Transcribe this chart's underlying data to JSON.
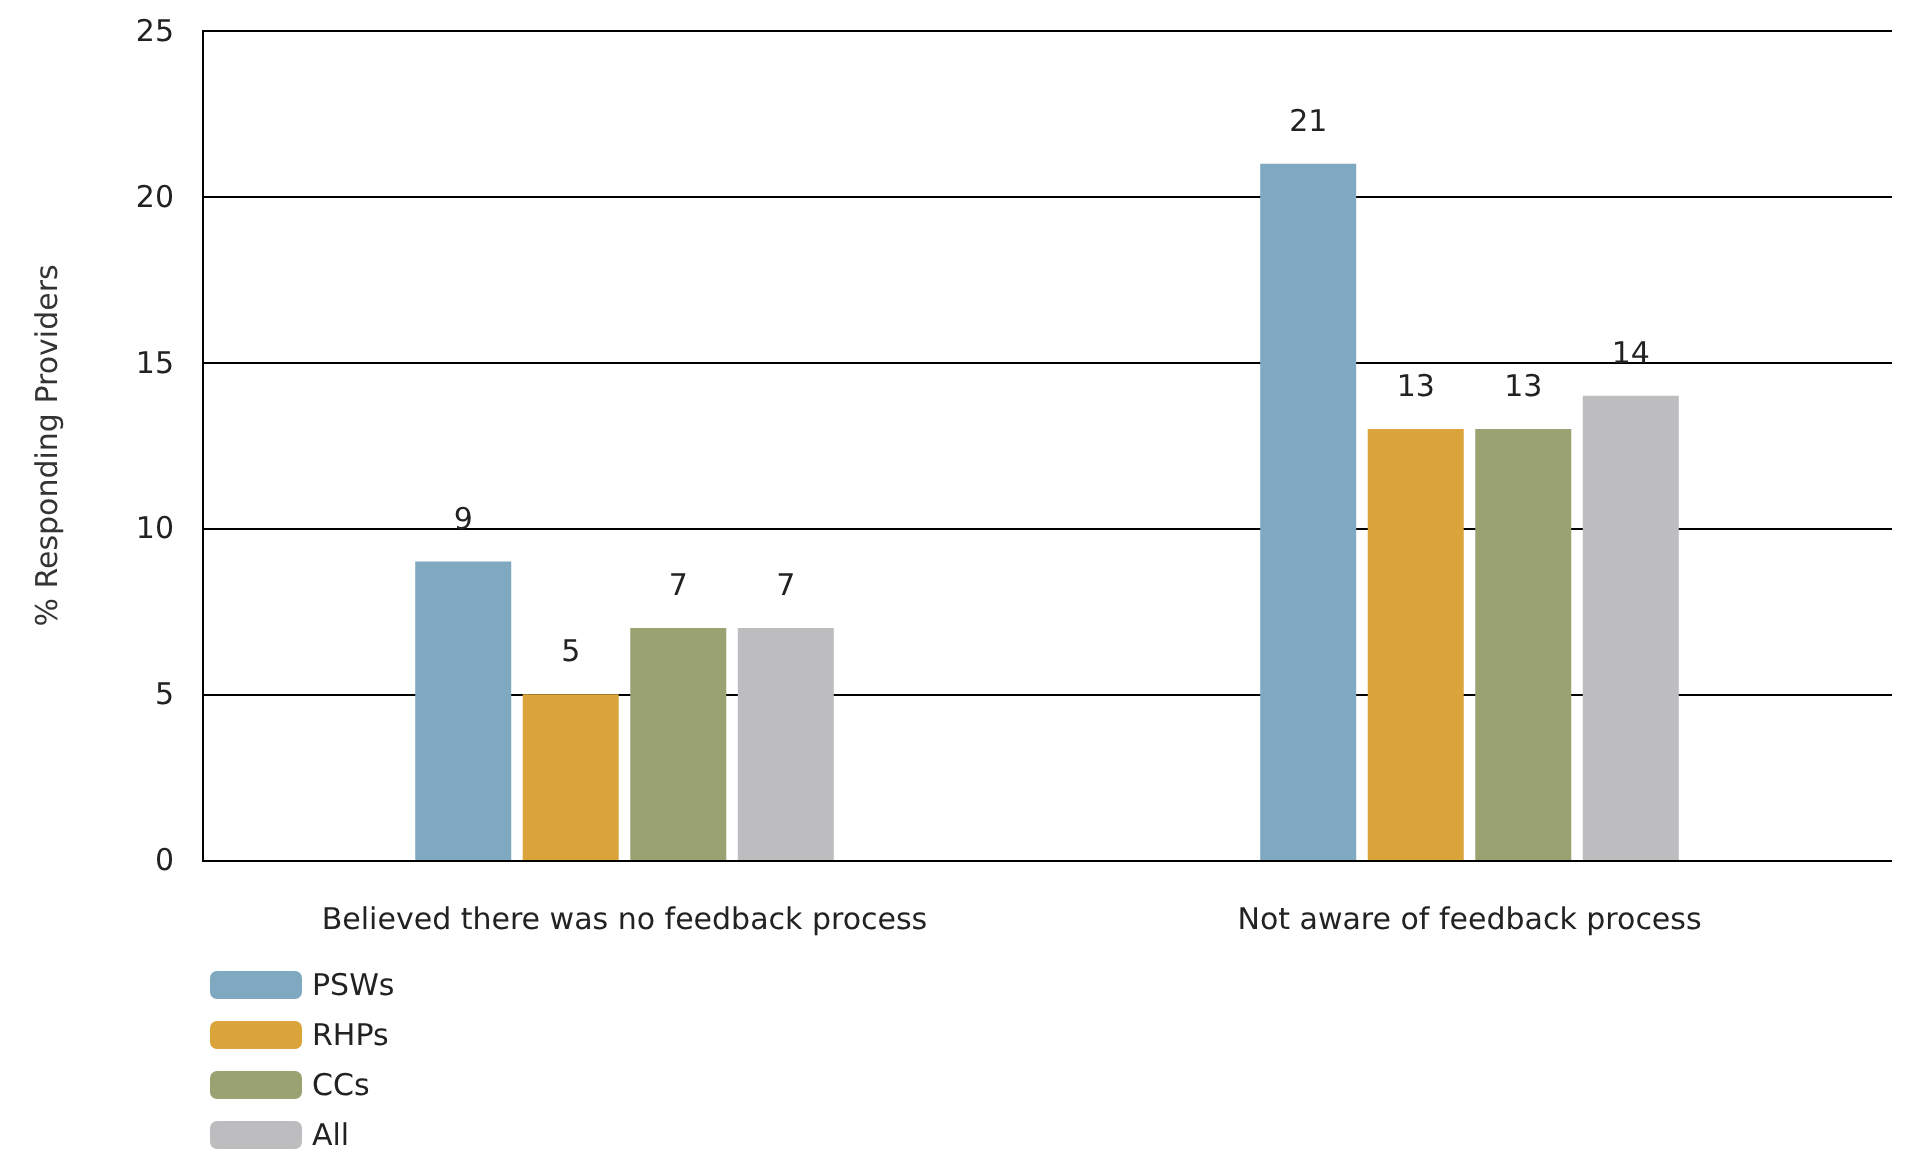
{
  "chart_data": {
    "type": "bar",
    "ylabel": "% Responding Providers",
    "categories": [
      "Believed there was no feedback process",
      "Not aware of feedback process"
    ],
    "series": [
      {
        "name": "PSWs",
        "color": "#7fa9c0",
        "values": [
          9,
          21
        ]
      },
      {
        "name": "RHPs",
        "color": "#dba43a",
        "values": [
          5,
          13
        ]
      },
      {
        "name": "CCs",
        "color": "#9aa272",
        "values": [
          7,
          13
        ]
      },
      {
        "name": "All",
        "color": "#bdbdbf",
        "values": [
          7,
          14
        ]
      }
    ],
    "ylim": [
      0,
      25
    ],
    "yticks": [
      0,
      5,
      10,
      15,
      20,
      25
    ],
    "grid": "y",
    "legend": "bottom left",
    "data_labels": true
  }
}
